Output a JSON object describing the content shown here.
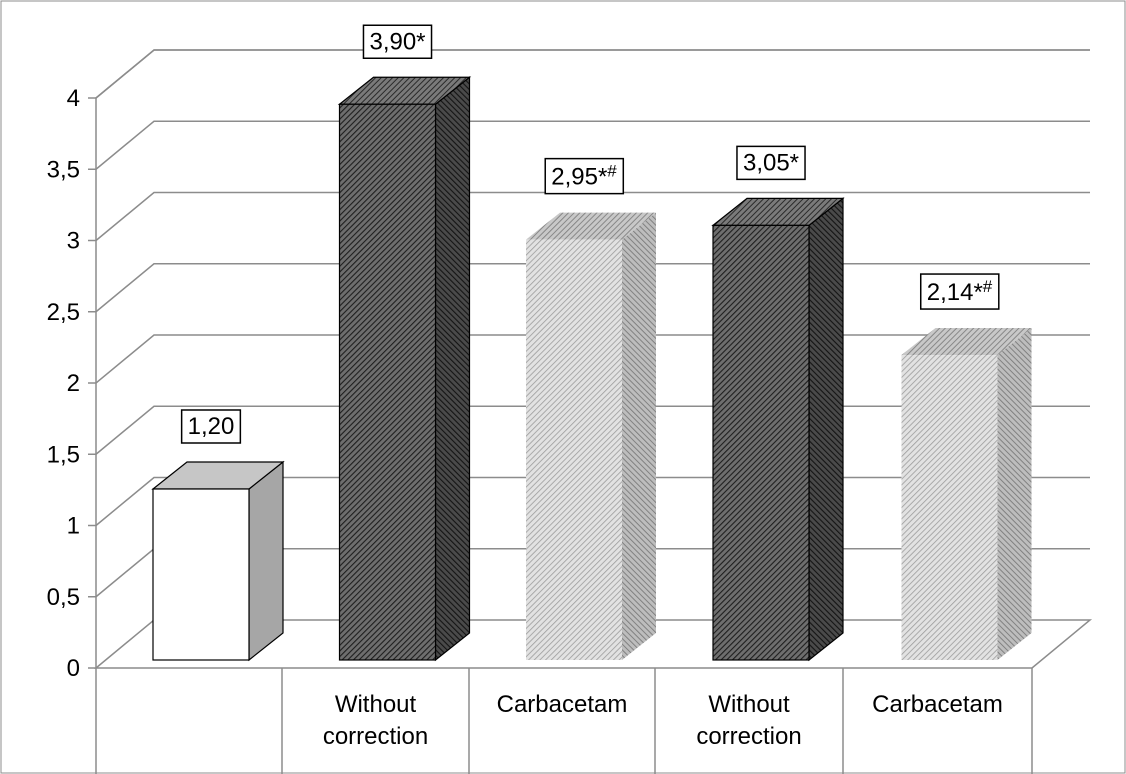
{
  "chart_data": {
    "type": "bar",
    "title": "",
    "xlabel": "",
    "ylabel": "",
    "ylim": [
      0,
      4
    ],
    "yticks": [
      "0",
      "0,5",
      "1",
      "1,5",
      "2",
      "2,5",
      "3",
      "3,5",
      "4"
    ],
    "grid": true,
    "three_d": true,
    "categories": [
      "",
      "Without\ncorrection",
      "Carbacetam",
      "Without\ncorrection",
      "Carbacetam"
    ],
    "values": [
      1.2,
      3.9,
      2.95,
      3.05,
      2.14
    ],
    "data_labels": [
      {
        "main": "1,20",
        "sup": ""
      },
      {
        "main": "3,90*",
        "sup": ""
      },
      {
        "main": "2,95*",
        "sup": "#"
      },
      {
        "main": "3,05*",
        "sup": ""
      },
      {
        "main": "2,14*",
        "sup": "#"
      }
    ],
    "bar_styles": [
      "white",
      "dark-hatch",
      "light-hatch",
      "dark-hatch",
      "light-hatch"
    ]
  }
}
